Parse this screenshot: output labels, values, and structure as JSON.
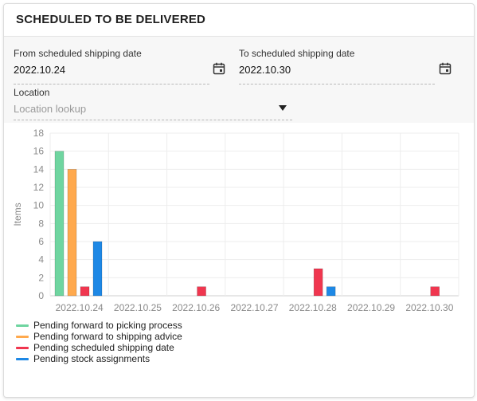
{
  "card": {
    "title": "SCHEDULED TO BE DELIVERED"
  },
  "filters": {
    "from": {
      "label": "From scheduled shipping date",
      "value": "2022.10.24",
      "icon": "calendar-icon"
    },
    "to": {
      "label": "To scheduled shipping date",
      "value": "2022.10.30",
      "icon": "calendar-icon"
    },
    "location": {
      "label": "Location",
      "placeholder": "Location lookup",
      "icon": "dropdown-arrow-icon"
    }
  },
  "chart_data": {
    "type": "bar",
    "title": "",
    "xlabel": "",
    "ylabel": "Items",
    "ylim": [
      0,
      18
    ],
    "yticks": [
      0,
      2,
      4,
      6,
      8,
      10,
      12,
      14,
      16,
      18
    ],
    "grid": true,
    "legend_position": "bottom-left",
    "categories": [
      "2022.10.24",
      "2022.10.25",
      "2022.10.26",
      "2022.10.27",
      "2022.10.28",
      "2022.10.29",
      "2022.10.30"
    ],
    "series": [
      {
        "name": "Pending forward to picking process",
        "color": "#6fd5a0",
        "values": [
          16,
          0,
          0,
          0,
          0,
          0,
          0
        ]
      },
      {
        "name": "Pending forward to shipping advice",
        "color": "#ffa94d",
        "values": [
          14,
          0,
          0,
          0,
          0,
          0,
          0
        ]
      },
      {
        "name": "Pending scheduled shipping date",
        "color": "#f0364f",
        "values": [
          1,
          0,
          1,
          0,
          3,
          0,
          1
        ]
      },
      {
        "name": "Pending stock assignments",
        "color": "#1e88e5",
        "values": [
          6,
          0,
          0,
          0,
          1,
          0,
          0
        ]
      }
    ]
  }
}
